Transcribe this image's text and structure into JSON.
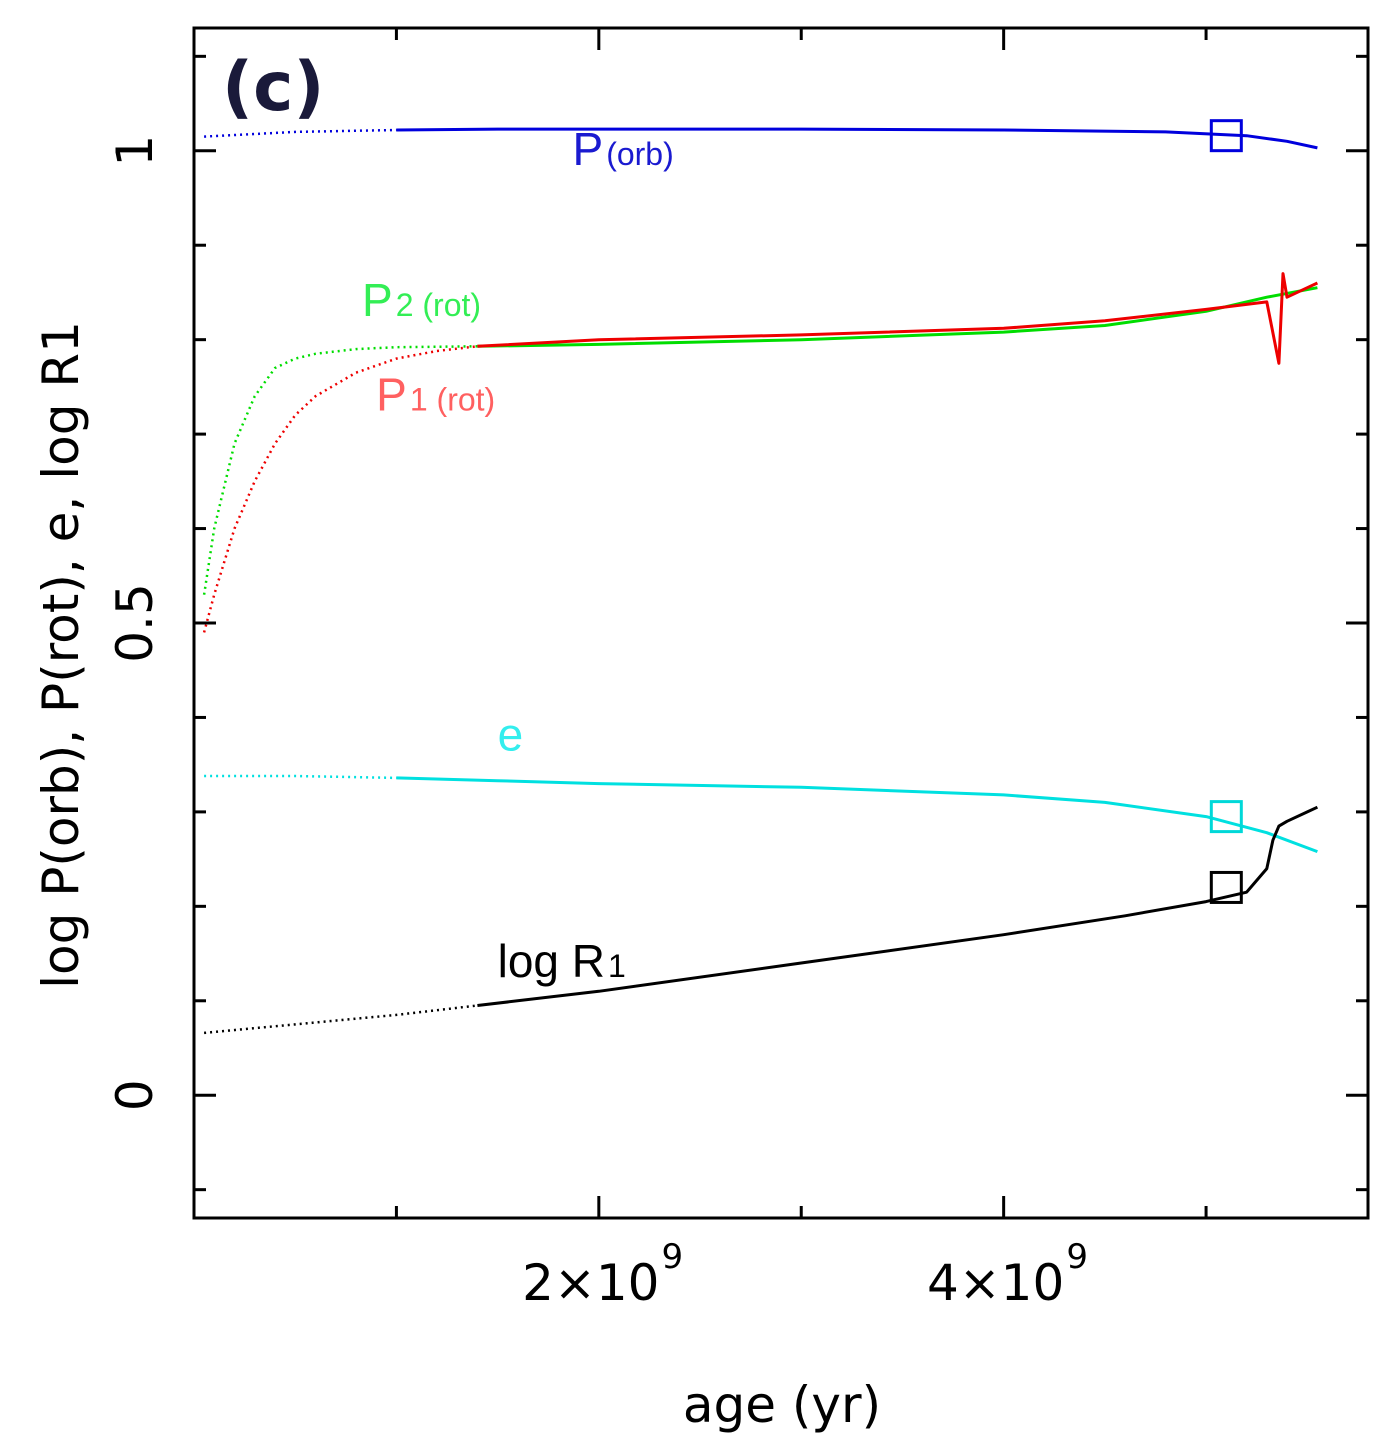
{
  "panel_label": "(c)",
  "chart_data": {
    "type": "line",
    "title": "",
    "xlabel": "age (yr)",
    "ylabel": "log P(orb), P(rot), e, log R1",
    "xlim": [
      0,
      5800000000.0
    ],
    "ylim": [
      -0.13,
      1.13
    ],
    "x_ticks": [
      {
        "value": 2000000000.0,
        "label": "2×10",
        "exp": "9"
      },
      {
        "value": 4000000000.0,
        "label": "4×10",
        "exp": "9"
      }
    ],
    "x_minor_ticks": [
      1000000000.0,
      3000000000.0,
      5000000000.0
    ],
    "y_ticks": [
      {
        "value": 0,
        "label": "0"
      },
      {
        "value": 0.5,
        "label": "0.5"
      },
      {
        "value": 1,
        "label": "1"
      }
    ],
    "y_minor_ticks": [
      -0.1,
      0.1,
      0.2,
      0.3,
      0.4,
      0.6,
      0.7,
      0.8,
      0.9,
      1.1
    ],
    "series": [
      {
        "name": "P(orb)",
        "label_main": "P",
        "label_sub": "(orb)",
        "color": "#0000dd",
        "label_color": "#1a1ad0",
        "x": [
          50000000.0,
          500000000.0,
          1000000000.0,
          1500000000.0,
          2000000000.0,
          3000000000.0,
          4000000000.0,
          4800000000.0,
          5200000000.0,
          5400000000.0,
          5550000000.0
        ],
        "y": [
          1.015,
          1.02,
          1.022,
          1.023,
          1.023,
          1.023,
          1.022,
          1.02,
          1.016,
          1.01,
          1.003
        ]
      },
      {
        "name": "P2(rot)",
        "label_main": "P",
        "label_sub": "2 (rot)",
        "color": "#00dd00",
        "label_color": "#33ee55",
        "x": [
          50000000.0,
          100000000.0,
          200000000.0,
          300000000.0,
          400000000.0,
          500000000.0,
          600000000.0,
          800000000.0,
          1000000000.0,
          1400000000.0,
          2000000000.0,
          3000000000.0,
          4000000000.0,
          4500000000.0,
          5000000000.0,
          5300000000.0,
          5550000000.0
        ],
        "y": [
          0.53,
          0.6,
          0.69,
          0.74,
          0.77,
          0.78,
          0.785,
          0.79,
          0.792,
          0.793,
          0.795,
          0.8,
          0.808,
          0.815,
          0.83,
          0.845,
          0.855
        ]
      },
      {
        "name": "P1(rot)",
        "label_main": "P",
        "label_sub": "1 (rot)",
        "color": "#ee0000",
        "label_color": "#ff6060",
        "x": [
          50000000.0,
          100000000.0,
          200000000.0,
          300000000.0,
          400000000.0,
          500000000.0,
          600000000.0,
          800000000.0,
          1000000000.0,
          1200000000.0,
          1400000000.0,
          2000000000.0,
          3000000000.0,
          4000000000.0,
          4500000000.0,
          5000000000.0,
          5300000000.0,
          5360000000.0,
          5380000000.0,
          5400000000.0,
          5500000000.0,
          5550000000.0
        ],
        "y": [
          0.49,
          0.53,
          0.6,
          0.65,
          0.69,
          0.72,
          0.74,
          0.765,
          0.78,
          0.788,
          0.793,
          0.8,
          0.805,
          0.812,
          0.82,
          0.832,
          0.84,
          0.775,
          0.87,
          0.845,
          0.855,
          0.86
        ]
      },
      {
        "name": "e",
        "label_main": "e",
        "label_sub": "",
        "color": "#00e0e0",
        "label_color": "#33eeee",
        "x": [
          50000000.0,
          500000000.0,
          1000000000.0,
          1500000000.0,
          2000000000.0,
          3000000000.0,
          4000000000.0,
          4500000000.0,
          5000000000.0,
          5300000000.0,
          5550000000.0
        ],
        "y": [
          0.338,
          0.338,
          0.336,
          0.333,
          0.33,
          0.326,
          0.318,
          0.31,
          0.295,
          0.278,
          0.258
        ]
      },
      {
        "name": "log R1",
        "label_main": "log R",
        "label_sub": "1",
        "color": "#000000",
        "label_color": "#000000",
        "x": [
          50000000.0,
          1000000000.0,
          1400000000.0,
          2000000000.0,
          3000000000.0,
          4000000000.0,
          4600000000.0,
          5000000000.0,
          5200000000.0,
          5300000000.0,
          5330000000.0,
          5360000000.0,
          5400000000.0,
          5500000000.0,
          5550000000.0
        ],
        "y": [
          0.066,
          0.085,
          0.095,
          0.11,
          0.14,
          0.17,
          0.19,
          0.205,
          0.215,
          0.24,
          0.27,
          0.285,
          0.29,
          0.3,
          0.305
        ]
      }
    ],
    "markers": [
      {
        "series": "P(orb)",
        "shape": "square",
        "x": 5100000000.0,
        "y": 1.016,
        "color": "#0000dd"
      },
      {
        "series": "e",
        "shape": "square",
        "x": 5100000000.0,
        "y": 0.295,
        "color": "#00d8d8"
      },
      {
        "series": "log R1",
        "shape": "square",
        "x": 5100000000.0,
        "y": 0.22,
        "color": "#000000"
      }
    ],
    "annotations": [
      {
        "series": "P(orb)",
        "x": 1870000000.0,
        "y": 0.985
      },
      {
        "series": "P2(rot)",
        "x": 830000000.0,
        "y": 0.825
      },
      {
        "series": "P1(rot)",
        "x": 900000000.0,
        "y": 0.725
      },
      {
        "series": "e",
        "x": 1500000000.0,
        "y": 0.365
      },
      {
        "series": "log R1",
        "x": 1500000000.0,
        "y": 0.125
      }
    ]
  }
}
